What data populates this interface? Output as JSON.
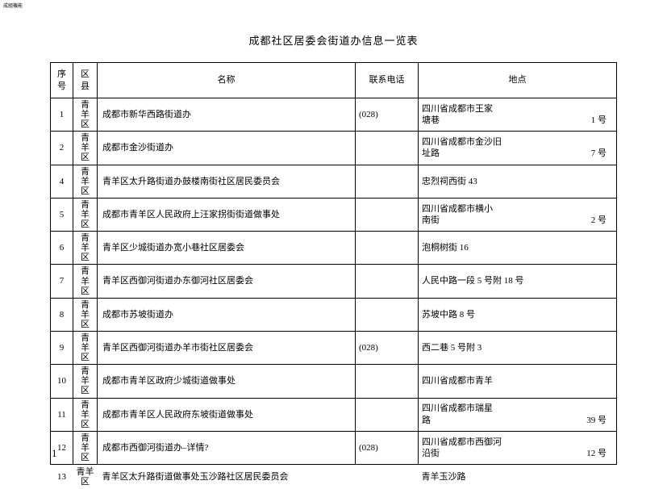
{
  "header_mark": "成組機能",
  "title": "成都社区居委会街道办信息一览表",
  "columns": {
    "seq": "序号",
    "district": "区县",
    "name": "名称",
    "phone": "联系电话",
    "address": "地点"
  },
  "rows": [
    {
      "seq": "1",
      "district": "青羊区",
      "name": "成都市新华西路街道办",
      "phone": "(028)",
      "addr_line1": "四川省成都市王家",
      "addr_line2_left": "塘巷",
      "addr_line2_right": "1 号"
    },
    {
      "seq": "2",
      "district": "青羊区",
      "name": "成都市金沙街道办",
      "phone": "",
      "addr_line1": "四川省成都市金沙旧",
      "addr_line2_left": "址路",
      "addr_line2_right": "7 号"
    },
    {
      "seq": "4",
      "district": "青羊区",
      "name": "青羊区太升路街道办鼓楼南街社区居民委员会",
      "phone": "",
      "addr_line1": "忠烈祠西街 43",
      "addr_line2_left": "",
      "addr_line2_right": ""
    },
    {
      "seq": "5",
      "district": "青羊区",
      "name": "成都市青羊区人民政府上汪家拐街街道做事处",
      "phone": "",
      "addr_line1": "四川省成都市横小",
      "addr_line2_left": "南街",
      "addr_line2_right": "2 号"
    },
    {
      "seq": "6",
      "district": "青羊区",
      "name": "青羊区少城街道办宽小巷社区居委会",
      "phone": "",
      "addr_line1": "泡桐树街 16",
      "addr_line2_left": "",
      "addr_line2_right": ""
    },
    {
      "seq": "7",
      "district": "青羊区",
      "name": "青羊区西御河街道办东御河社区居委会",
      "phone": "",
      "addr_line1": "人民中路一段 5 号附 18 号",
      "addr_line2_left": "",
      "addr_line2_right": ""
    },
    {
      "seq": "8",
      "district": "青羊区",
      "name": "成都市苏坡街道办",
      "phone": "",
      "addr_line1": "苏坡中路 8 号",
      "addr_line2_left": "",
      "addr_line2_right": ""
    },
    {
      "seq": "9",
      "district": "青羊区",
      "name": "青羊区西御河街道办羊市街社区居委会",
      "phone": "(028)",
      "addr_line1": "西二巷 5 号附 3",
      "addr_line2_left": "",
      "addr_line2_right": ""
    },
    {
      "seq": "10",
      "district": "青羊区",
      "name": "成都市青羊区政府少城街道做事处",
      "phone": "",
      "addr_line1": "四川省成都市青羊",
      "addr_line2_left": "",
      "addr_line2_right": ""
    },
    {
      "seq": "11",
      "district": "青羊区",
      "name": "成都市青羊区人民政府东坡街道做事处",
      "phone": "",
      "addr_line1": "四川省成都市瑞星",
      "addr_line2_left": "路",
      "addr_line2_right": "39 号"
    },
    {
      "seq": "12",
      "district": "青羊区",
      "name": "成都市西御河街道办–详情?",
      "phone": "(028)",
      "addr_line1": "四川省成都市西御河",
      "addr_line2_left": "沿街",
      "addr_line2_right": "12  号"
    },
    {
      "seq": "13",
      "district": "青羊区",
      "name": "青羊区太升路街道做事处玉沙路社区居民委员会",
      "phone": "",
      "addr_line1": "青羊玉沙路",
      "addr_line2_left": "",
      "addr_line2_right": "",
      "noborder": true
    }
  ],
  "page_number": "1",
  "colors": {
    "text": "#000000",
    "background": "#ffffff",
    "border": "#000000"
  }
}
